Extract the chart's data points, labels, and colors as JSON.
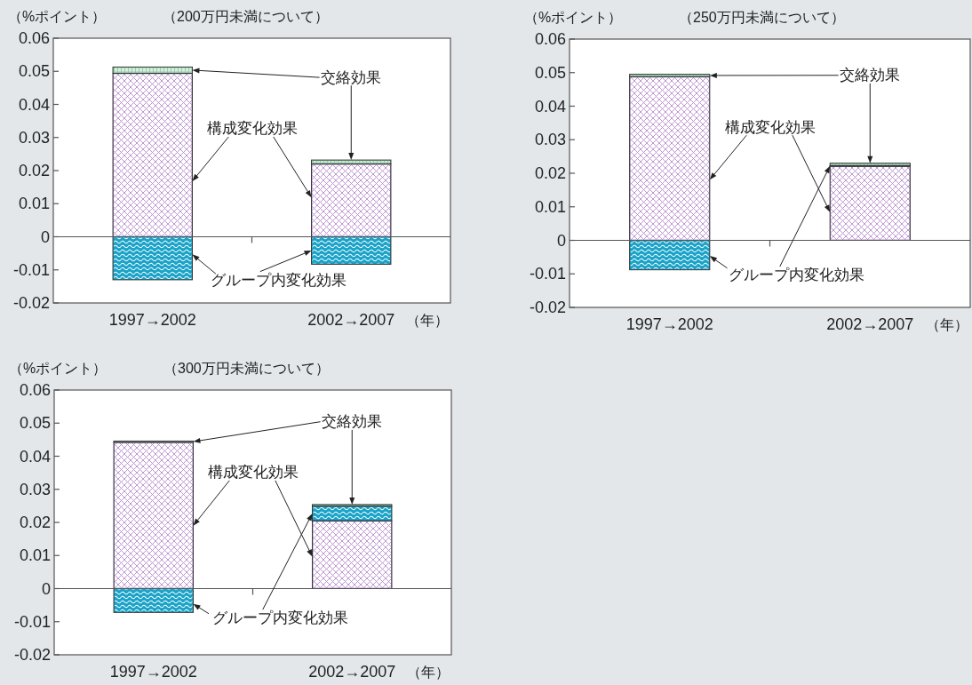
{
  "chart_data": [
    {
      "type": "bar",
      "stacked": true,
      "title": "（200万円未満について）",
      "ylabel": "（%ポイント）",
      "xlabel": "（年）",
      "categories": [
        "1997→2002",
        "2002→2007"
      ],
      "ylim": [
        -0.02,
        0.06
      ],
      "yticks": [
        -0.02,
        -0.01,
        0,
        0.01,
        0.02,
        0.03,
        0.04,
        0.05,
        0.06
      ],
      "series": [
        {
          "name": "構成変化効果",
          "color": "#b48ccb",
          "values": [
            0.0494,
            0.022
          ]
        },
        {
          "name": "グループ内変化効果",
          "color": "#1aa3c8",
          "values": [
            -0.013,
            -0.0083
          ]
        },
        {
          "name": "交絡効果",
          "color": "#8fcba3",
          "values": [
            0.0019,
            0.0012
          ]
        }
      ]
    },
    {
      "type": "bar",
      "stacked": true,
      "title": "（250万円未満について）",
      "ylabel": "（%ポイント）",
      "xlabel": "（年）",
      "categories": [
        "1997→2002",
        "2002→2007"
      ],
      "ylim": [
        -0.02,
        0.06
      ],
      "yticks": [
        -0.02,
        -0.01,
        0,
        0.01,
        0.02,
        0.03,
        0.04,
        0.05,
        0.06
      ],
      "series": [
        {
          "name": "構成変化効果",
          "color": "#b48ccb",
          "values": [
            0.0488,
            0.0221
          ]
        },
        {
          "name": "グループ内変化効果",
          "color": "#1aa3c8",
          "values": [
            -0.0088,
            0.0002
          ]
        },
        {
          "name": "交絡効果",
          "color": "#8fcba3",
          "values": [
            0.0007,
            0.0007
          ]
        }
      ]
    },
    {
      "type": "bar",
      "stacked": true,
      "title": "（300万円未満について）",
      "ylabel": "（%ポイント）",
      "xlabel": "（年）",
      "categories": [
        "1997→2002",
        "2002→2007"
      ],
      "ylim": [
        -0.02,
        0.06
      ],
      "yticks": [
        -0.02,
        -0.01,
        0,
        0.01,
        0.02,
        0.03,
        0.04,
        0.05,
        0.06
      ],
      "series": [
        {
          "name": "構成変化効果",
          "color": "#b48ccb",
          "values": [
            0.0442,
            0.0205
          ]
        },
        {
          "name": "グループ内変化効果",
          "color": "#1aa3c8",
          "values": [
            -0.0072,
            0.0044
          ]
        },
        {
          "name": "交絡効果",
          "color": "#8fcba3",
          "values": [
            0.0004,
            0.0005
          ]
        }
      ]
    }
  ]
}
